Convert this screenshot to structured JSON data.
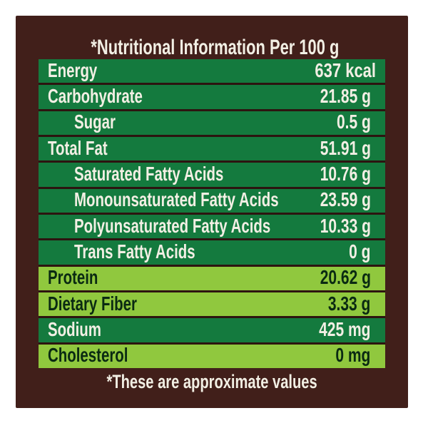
{
  "title": "*Nutritional Information Per 100 g",
  "footer": "*These are approximate values",
  "colors": {
    "panel_brown": "#411f1a",
    "row_dark_green": "#147a3e",
    "row_light_green": "#90c83e",
    "row_gap": "#2d1410",
    "text_light": "#f2efe4",
    "text_dark": "#0a2a12",
    "page_background": "#ffffff"
  },
  "rows": [
    {
      "label": "Energy",
      "value": "637 kcal",
      "tone": "dark",
      "indent": false
    },
    {
      "label": "Carbohydrate",
      "value": "21.85 g",
      "tone": "dark",
      "indent": false
    },
    {
      "label": "Sugar",
      "value": "0.5 g",
      "tone": "dark",
      "indent": true
    },
    {
      "label": "Total Fat",
      "value": "51.91 g",
      "tone": "dark",
      "indent": false
    },
    {
      "label": "Saturated Fatty Acids",
      "value": "10.76 g",
      "tone": "dark",
      "indent": true
    },
    {
      "label": "Monounsaturated Fatty Acids",
      "value": "23.59 g",
      "tone": "dark",
      "indent": true
    },
    {
      "label": "Polyunsaturated Fatty Acids",
      "value": "10.33 g",
      "tone": "dark",
      "indent": true
    },
    {
      "label": "Trans Fatty Acids",
      "value": "0 g",
      "tone": "dark",
      "indent": true
    },
    {
      "label": "Protein",
      "value": "20.62 g",
      "tone": "light",
      "indent": false
    },
    {
      "label": "Dietary Fiber",
      "value": "3.33 g",
      "tone": "light",
      "indent": false
    },
    {
      "label": "Sodium",
      "value": "425 mg",
      "tone": "dark",
      "indent": false
    },
    {
      "label": "Cholesterol",
      "value": "0 mg",
      "tone": "light",
      "indent": false
    }
  ]
}
